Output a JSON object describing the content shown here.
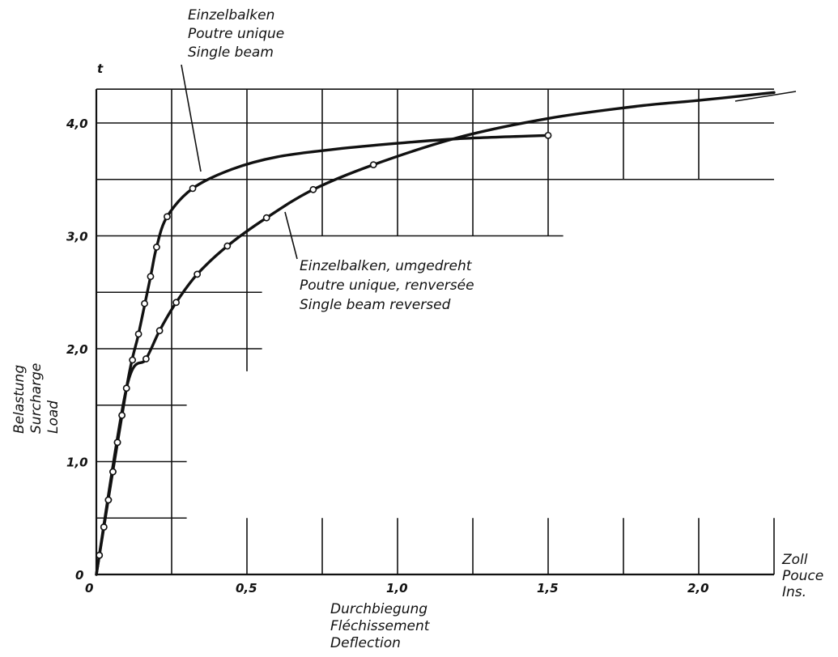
{
  "chart_data": {
    "type": "line",
    "xlim": [
      0,
      2.25
    ],
    "ylim": [
      0,
      4.3
    ],
    "x_ticks": [
      {
        "value": 0,
        "label": "0"
      },
      {
        "value": 0.5,
        "label": "0,5"
      },
      {
        "value": 1.0,
        "label": "1,0"
      },
      {
        "value": 1.5,
        "label": "1,5"
      },
      {
        "value": 2.0,
        "label": "2,0"
      }
    ],
    "y_ticks": [
      {
        "value": 0,
        "label": "0"
      },
      {
        "value": 1.0,
        "label": "1,0"
      },
      {
        "value": 2.0,
        "label": "2,0"
      },
      {
        "value": 3.0,
        "label": "3,0"
      },
      {
        "value": 4.0,
        "label": "4,0"
      }
    ],
    "y_unit": "t",
    "x_unit_lines": [
      "Zoll",
      "Pouce",
      "Ins."
    ],
    "xlabel_lines": [
      "Durchbiegung",
      "Fléchissement",
      "Deflection"
    ],
    "ylabel_lines": [
      "Belastung",
      "Surcharge",
      "Load"
    ],
    "grid": true,
    "series": [
      {
        "name_lines": [
          "Einzelbalken",
          "Poutre unique",
          "Single beam"
        ],
        "points": [
          [
            0.01,
            0.17
          ],
          [
            0.025,
            0.42
          ],
          [
            0.04,
            0.66
          ],
          [
            0.055,
            0.91
          ],
          [
            0.07,
            1.17
          ],
          [
            0.085,
            1.41
          ],
          [
            0.1,
            1.65
          ],
          [
            0.12,
            1.9
          ],
          [
            0.14,
            2.13
          ],
          [
            0.16,
            2.4
          ],
          [
            0.18,
            2.64
          ],
          [
            0.2,
            2.9
          ],
          [
            0.235,
            3.17
          ],
          [
            0.32,
            3.42
          ],
          [
            1.5,
            3.89
          ]
        ],
        "curve": [
          [
            0,
            0
          ],
          [
            0.1,
            1.65
          ],
          [
            0.14,
            2.13
          ],
          [
            0.18,
            2.64
          ],
          [
            0.2,
            2.9
          ],
          [
            0.235,
            3.17
          ],
          [
            0.32,
            3.42
          ],
          [
            0.45,
            3.59
          ],
          [
            0.6,
            3.7
          ],
          [
            0.8,
            3.77
          ],
          [
            1.0,
            3.82
          ],
          [
            1.2,
            3.86
          ],
          [
            1.5,
            3.89
          ]
        ]
      },
      {
        "name_lines": [
          "Einzelbalken, umgedreht",
          "Poutre unique, renversée",
          "Single beam reversed"
        ],
        "points": [
          [
            0.01,
            0.17
          ],
          [
            0.025,
            0.42
          ],
          [
            0.04,
            0.66
          ],
          [
            0.055,
            0.91
          ],
          [
            0.07,
            1.17
          ],
          [
            0.085,
            1.41
          ],
          [
            0.1,
            1.65
          ],
          [
            0.165,
            1.91
          ],
          [
            0.21,
            2.16
          ],
          [
            0.265,
            2.41
          ],
          [
            0.335,
            2.66
          ],
          [
            0.435,
            2.91
          ],
          [
            0.565,
            3.16
          ],
          [
            0.72,
            3.41
          ],
          [
            0.92,
            3.63
          ]
        ],
        "curve": [
          [
            0,
            0
          ],
          [
            0.1,
            1.65
          ],
          [
            0.165,
            1.91
          ],
          [
            0.21,
            2.16
          ],
          [
            0.265,
            2.41
          ],
          [
            0.335,
            2.66
          ],
          [
            0.435,
            2.91
          ],
          [
            0.565,
            3.16
          ],
          [
            0.72,
            3.41
          ],
          [
            0.92,
            3.63
          ],
          [
            1.2,
            3.87
          ],
          [
            1.5,
            4.04
          ],
          [
            1.8,
            4.15
          ],
          [
            2.0,
            4.2
          ],
          [
            2.25,
            4.27
          ]
        ]
      }
    ]
  }
}
